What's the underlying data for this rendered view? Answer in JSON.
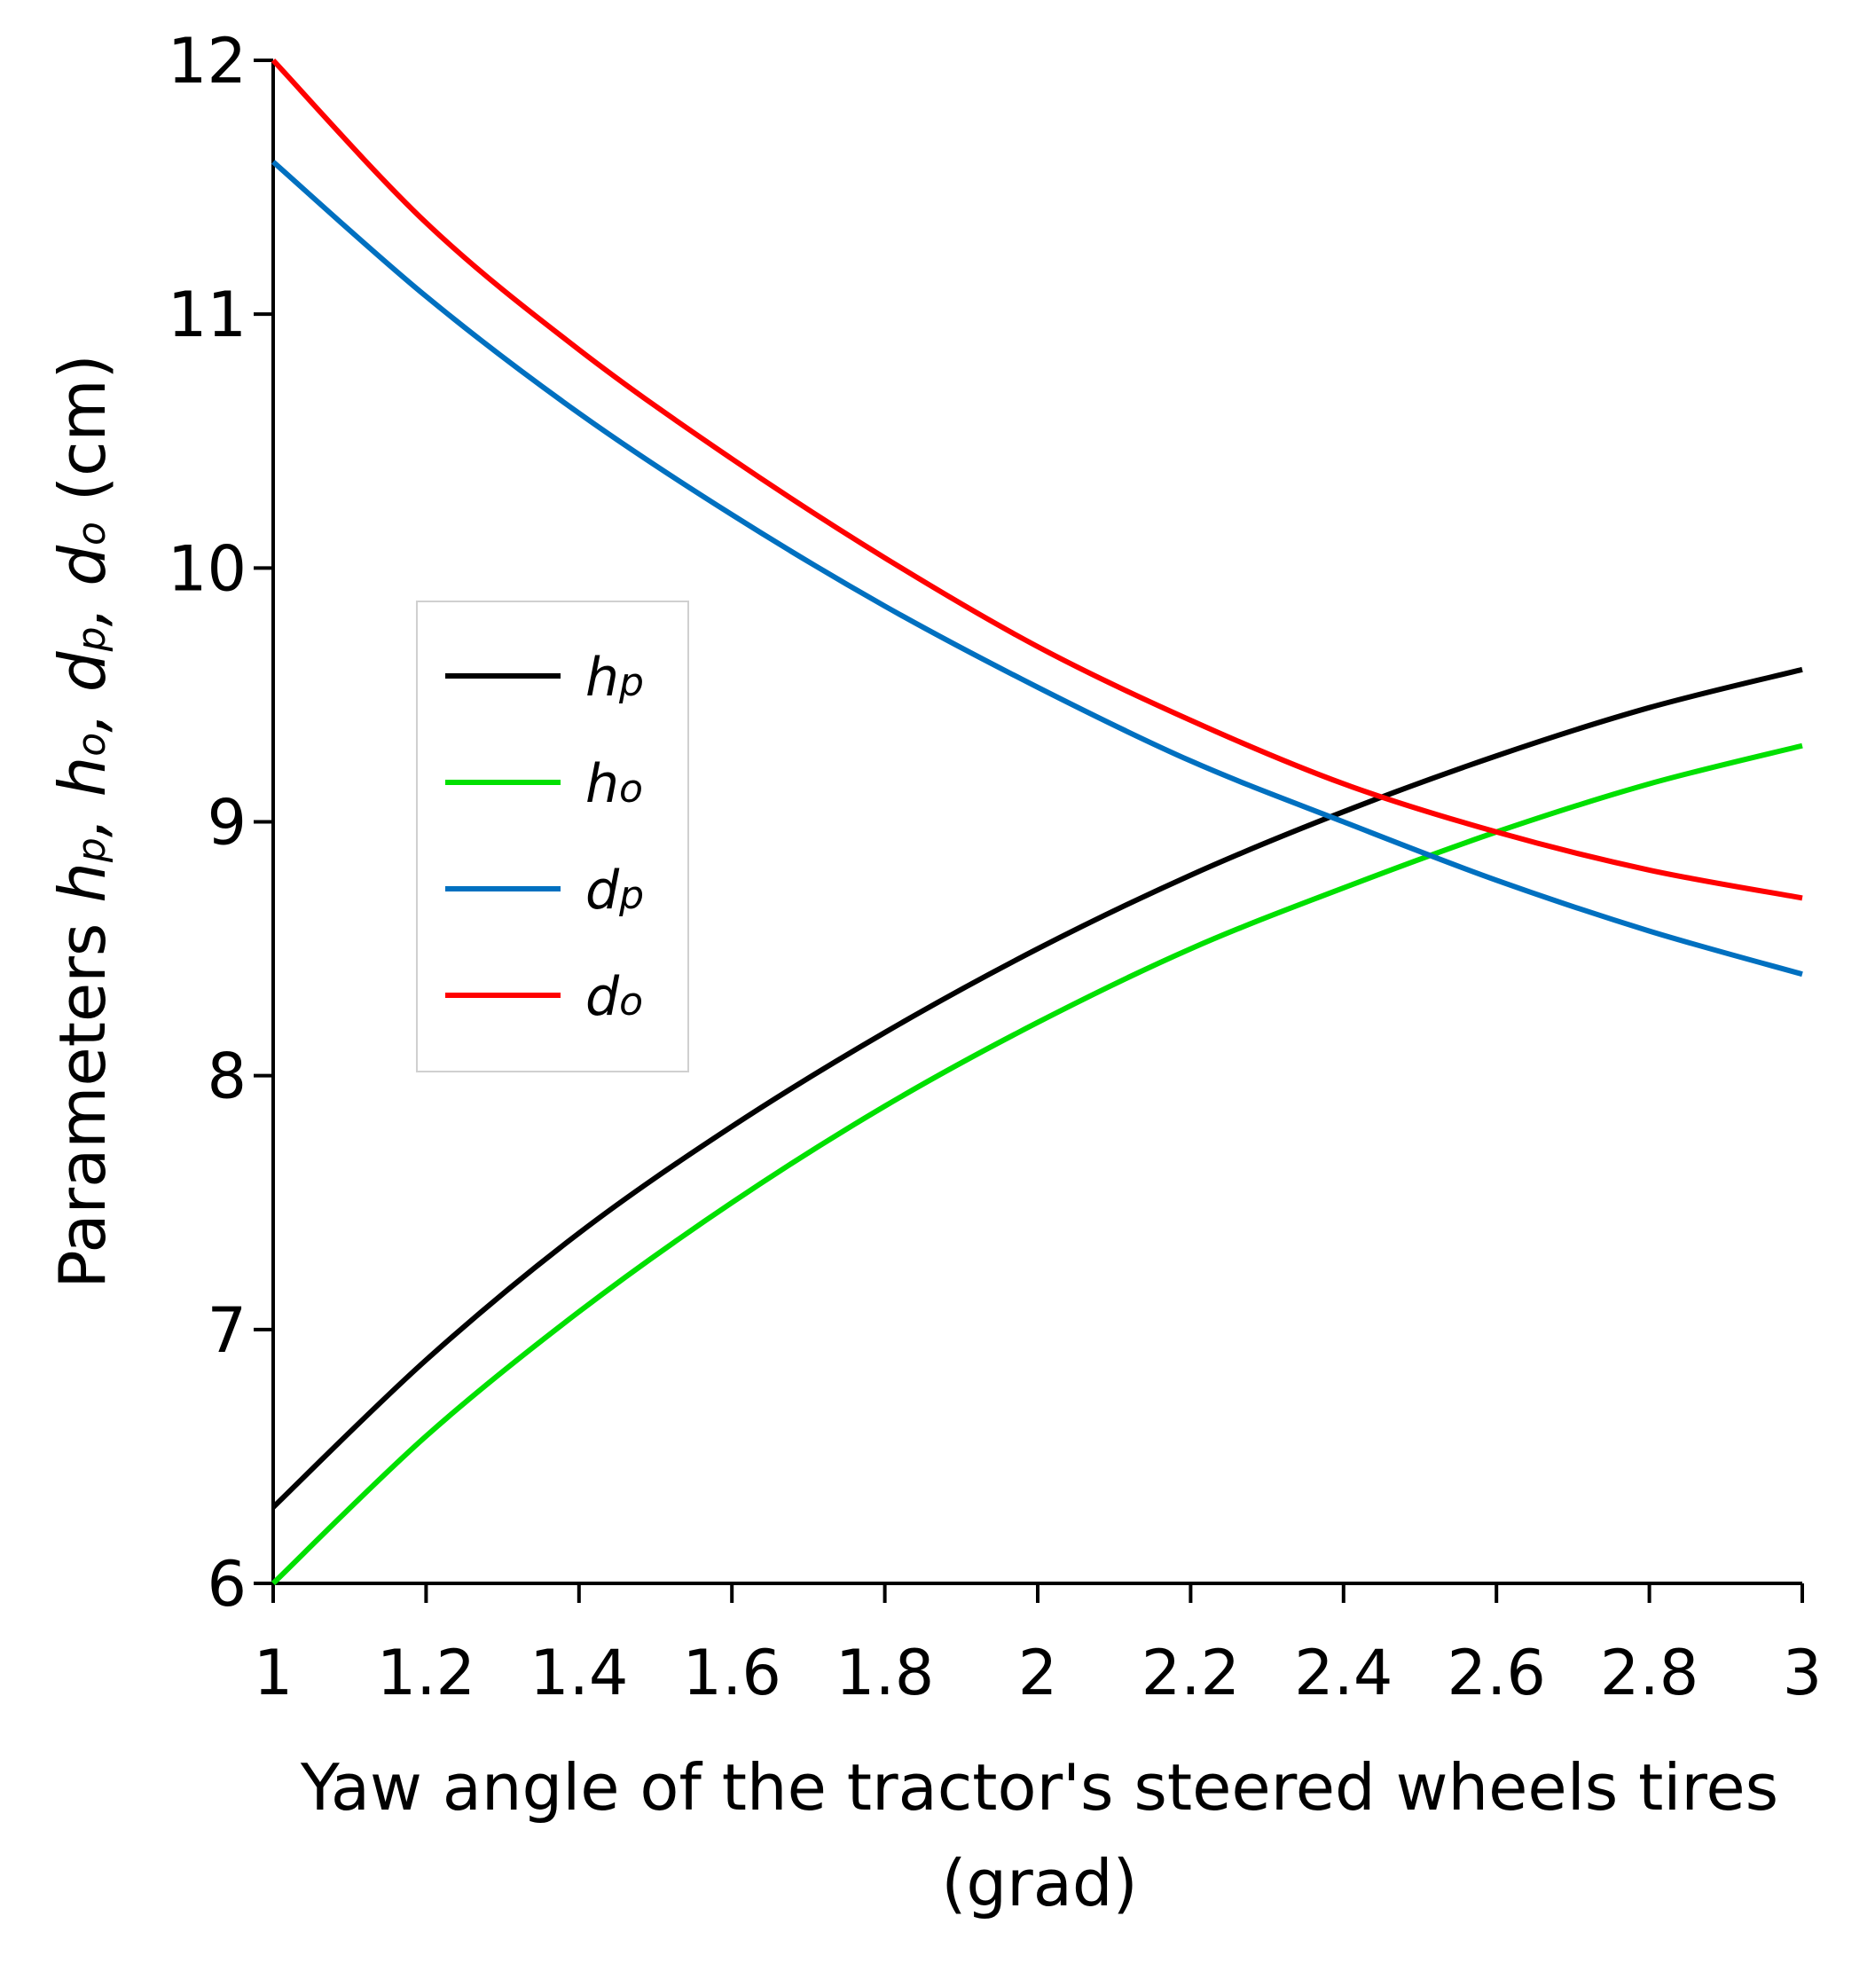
{
  "chart_data": {
    "type": "line",
    "title": "",
    "xlabel": "Yaw angle of the tractor's steered wheels tires (grad)",
    "ylabel": {
      "prefix": "Parameters ",
      "terms": [
        {
          "base": "h",
          "sub": "p"
        },
        {
          "base": "h",
          "sub": "o"
        },
        {
          "base": "d",
          "sub": "p"
        },
        {
          "base": "d",
          "sub": "o"
        }
      ],
      "suffix": " (cm)"
    },
    "xlim": [
      1,
      3
    ],
    "ylim": [
      6,
      12
    ],
    "xticks": [
      1,
      1.2,
      1.4,
      1.6,
      1.8,
      2,
      2.2,
      2.4,
      2.6,
      2.8,
      3
    ],
    "xtick_labels": [
      "1",
      "1.2",
      "1.4",
      "1.6",
      "1.8",
      "2",
      "2.2",
      "2.4",
      "2.6",
      "2.8",
      "3"
    ],
    "yticks": [
      6,
      7,
      8,
      9,
      10,
      11,
      12
    ],
    "ytick_labels": [
      "6",
      "7",
      "8",
      "9",
      "10",
      "11",
      "12"
    ],
    "grid": false,
    "legend_position": "left-center",
    "x": [
      1.0,
      1.2,
      1.4,
      1.6,
      1.8,
      2.0,
      2.2,
      2.4,
      2.6,
      2.8,
      3.0
    ],
    "series": [
      {
        "name": "hp",
        "base": "h",
        "sub": "p",
        "color": "#000000",
        "values": [
          6.3,
          6.88,
          7.38,
          7.8,
          8.17,
          8.5,
          8.79,
          9.04,
          9.26,
          9.45,
          9.6
        ]
      },
      {
        "name": "ho",
        "base": "h",
        "sub": "o",
        "color": "#00e000",
        "values": [
          6.0,
          6.58,
          7.07,
          7.5,
          7.88,
          8.21,
          8.5,
          8.74,
          8.96,
          9.15,
          9.3
        ]
      },
      {
        "name": "dp",
        "base": "d",
        "sub": "p",
        "color": "#0070c0",
        "values": [
          11.6,
          11.07,
          10.61,
          10.21,
          9.85,
          9.53,
          9.24,
          9.0,
          8.77,
          8.57,
          8.4
        ]
      },
      {
        "name": "do",
        "base": "d",
        "sub": "o",
        "color": "#ff0000",
        "values": [
          12.0,
          11.36,
          10.86,
          10.43,
          10.04,
          9.69,
          9.4,
          9.15,
          8.96,
          8.81,
          8.7
        ]
      }
    ]
  }
}
